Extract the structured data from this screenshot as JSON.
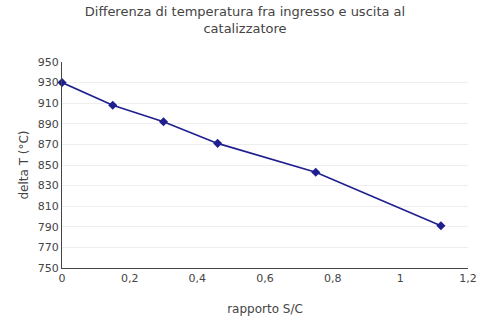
{
  "chart_data": {
    "type": "line",
    "title": "Differenza di temperatura fra ingresso e uscita al\ncatalizzatore",
    "xlabel": "rapporto S/C",
    "ylabel": "delta T (°C)",
    "x": [
      0,
      0.15,
      0.3,
      0.46,
      0.75,
      1.12
    ],
    "values": [
      930,
      908,
      892,
      871,
      843,
      791
    ],
    "color": "#1F1F8F",
    "marker": "diamond",
    "xlim": [
      0,
      1.2
    ],
    "xticks": [
      0,
      {
        "value": 0.2,
        "label": "0,2"
      },
      {
        "value": 0.4,
        "label": "0,4"
      },
      {
        "value": 0.6,
        "label": "0,6"
      },
      {
        "value": 0.8,
        "label": "0,8"
      },
      1,
      {
        "value": 1.2,
        "label": "1,2"
      }
    ],
    "ylim": [
      750,
      950
    ],
    "yticks": [
      750,
      770,
      790,
      810,
      830,
      850,
      870,
      890,
      910,
      930,
      950
    ],
    "grid": "y"
  }
}
